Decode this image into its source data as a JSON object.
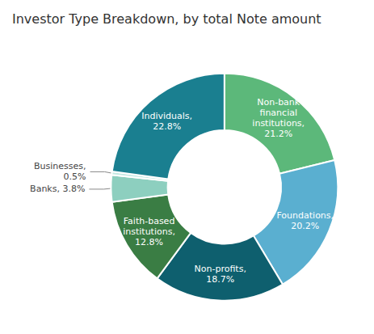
{
  "chart_data": {
    "type": "donut",
    "title": "Investor Type Breakdown, by total Note amount",
    "categories": [
      "Non-bank\nfinancial\ninstitutions,\n21.2%",
      "Foundations,\n20.2%",
      "Non-profits,\n18.7%",
      "Faith-based\ninstitutions,\n12.8%",
      "Banks, 3.8%",
      "Businesses,\n0.5%",
      "Individuals,\n22.8%"
    ],
    "values": [
      21.2,
      20.2,
      18.7,
      12.8,
      3.8,
      0.5,
      22.8
    ],
    "colors": [
      "#5cb87a",
      "#5aafd0",
      "#0e5f6e",
      "#3a7d44",
      "#8dcfbf",
      "#c3e8e2",
      "#1a7f90"
    ]
  }
}
